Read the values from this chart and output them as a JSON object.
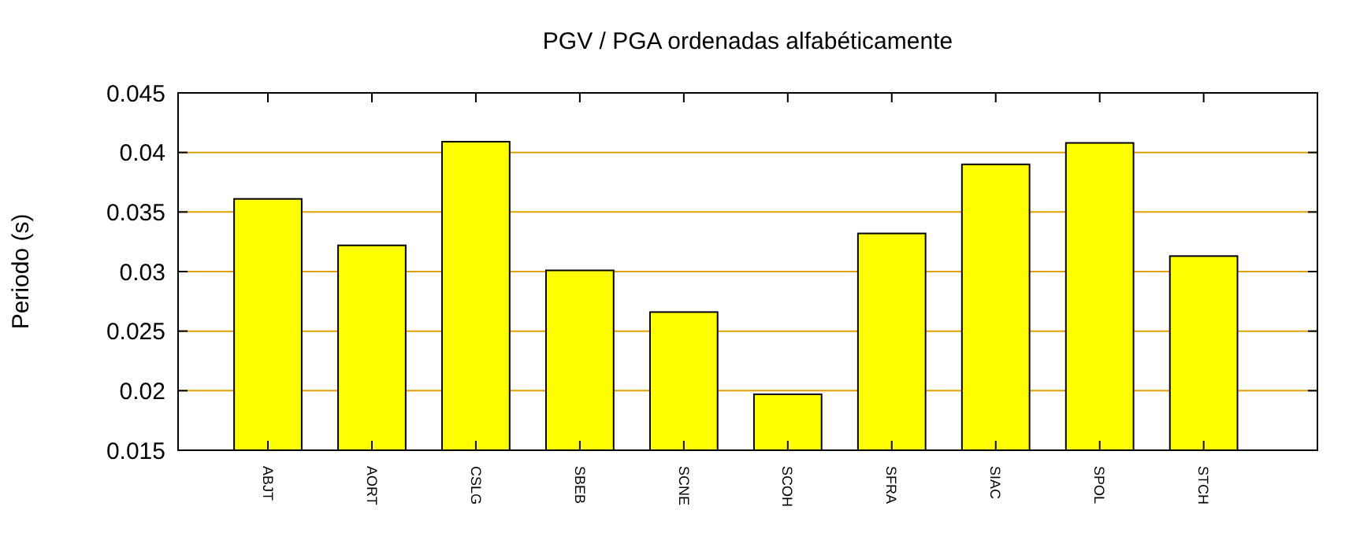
{
  "chart_data": {
    "type": "bar",
    "title": "PGV / PGA ordenadas alfabéticamente",
    "ylabel": "Periodo (s)",
    "categories": [
      "ABJT",
      "AORT",
      "CSLG",
      "SBEB",
      "SCNE",
      "SCOH",
      "SFRA",
      "SIAC",
      "SPOL",
      "STCH"
    ],
    "values": [
      0.0361,
      0.0322,
      0.0409,
      0.0301,
      0.0266,
      0.0197,
      0.0332,
      0.039,
      0.0408,
      0.0313
    ],
    "color": "#ffff00",
    "ylim": [
      0.015,
      0.045
    ],
    "yticks": [
      0.015,
      0.02,
      0.025,
      0.03,
      0.035,
      0.04,
      0.045
    ],
    "grid": "y"
  }
}
